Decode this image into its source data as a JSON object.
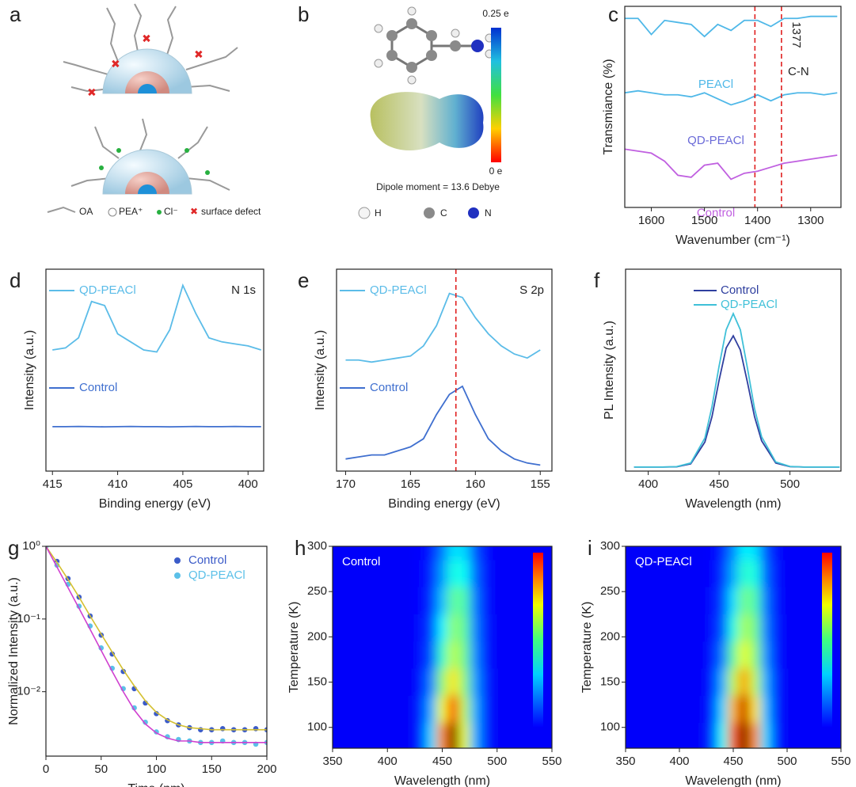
{
  "diagrams": [
    {
      "label": "a",
      "legend": [
        "OA",
        "PEA⁺",
        "Cl⁻",
        "surface defect"
      ]
    },
    {
      "label": "b",
      "scale_max": "0.25 e",
      "scale_min": "0 e",
      "caption": "Dipole moment = 13.6 Debye",
      "atoms": [
        "H",
        "C",
        "N"
      ]
    }
  ],
  "chart_data": [
    {
      "type": "line",
      "label": "c",
      "xlabel": "Wavenumber (cm⁻¹)",
      "ylabel": "Transmiance (%)",
      "legend": "inline",
      "x": [
        1650,
        1625,
        1600,
        1575,
        1550,
        1525,
        1500,
        1475,
        1450,
        1425,
        1400,
        1375,
        1350,
        1325,
        1300,
        1275,
        1250
      ],
      "series": [
        {
          "name": "PEACl",
          "color": "#4fb8e8",
          "values": [
            0.94,
            0.94,
            0.86,
            0.93,
            0.92,
            0.91,
            0.85,
            0.91,
            0.88,
            0.93,
            0.93,
            0.9,
            0.94,
            0.94,
            0.95,
            0.95,
            0.95
          ]
        },
        {
          "name": "QD-PEACl",
          "color": "#4fb8e8",
          "label_color": "#6a6ad8",
          "values": [
            0.57,
            0.58,
            0.57,
            0.56,
            0.56,
            0.55,
            0.57,
            0.54,
            0.51,
            0.53,
            0.56,
            0.53,
            0.56,
            0.57,
            0.57,
            0.56,
            0.57
          ]
        },
        {
          "name": "Control",
          "color": "#c060e0",
          "values": [
            0.29,
            0.28,
            0.27,
            0.23,
            0.16,
            0.15,
            0.21,
            0.22,
            0.14,
            0.17,
            0.18,
            0.2,
            0.22,
            0.23,
            0.24,
            0.25,
            0.26
          ]
        }
      ],
      "vlines": [
        1405,
        1355
      ],
      "vline_color": "#e02020",
      "annotations": [
        "1377",
        "C-N"
      ],
      "xlim": [
        1650,
        1243
      ],
      "ylim": [
        0,
        1
      ],
      "xticks": [
        1600,
        1500,
        1400,
        1300
      ]
    },
    {
      "type": "line",
      "label": "d",
      "xlabel": "Binding energy (eV)",
      "ylabel": "Intensity (a.u.)",
      "legend": "inline-line",
      "annotations": [
        "N 1s"
      ],
      "x": [
        415,
        414,
        413,
        412,
        411,
        410,
        409,
        408,
        407,
        406,
        405,
        404,
        403,
        402,
        401,
        400,
        399
      ],
      "series": [
        {
          "name": "QD-PEACl",
          "color": "#5bbce8",
          "values": [
            0.6,
            0.61,
            0.66,
            0.84,
            0.82,
            0.68,
            0.64,
            0.6,
            0.59,
            0.7,
            0.92,
            0.78,
            0.66,
            0.64,
            0.63,
            0.62,
            0.6
          ]
        },
        {
          "name": "Control",
          "color": "#3f6fcf",
          "values": [
            0.22,
            0.22,
            0.221,
            0.22,
            0.219,
            0.22,
            0.221,
            0.22,
            0.22,
            0.219,
            0.22,
            0.221,
            0.22,
            0.22,
            0.221,
            0.22,
            0.22
          ]
        }
      ],
      "xlim": [
        415.5,
        398.8
      ],
      "ylim": [
        0,
        1
      ],
      "xticks": [
        415,
        410,
        405,
        400
      ]
    },
    {
      "type": "line",
      "label": "e",
      "xlabel": "Binding energy (eV)",
      "ylabel": "Intensity (a.u.)",
      "legend": "inline-line",
      "annotations": [
        "S 2p"
      ],
      "x": [
        170,
        169,
        168,
        167,
        166,
        165,
        164,
        163,
        162,
        161,
        160,
        159,
        158,
        157,
        156,
        155
      ],
      "series": [
        {
          "name": "QD-PEACl",
          "color": "#5bbce8",
          "values": [
            0.55,
            0.55,
            0.54,
            0.55,
            0.56,
            0.57,
            0.62,
            0.72,
            0.88,
            0.86,
            0.76,
            0.68,
            0.62,
            0.58,
            0.56,
            0.6
          ]
        },
        {
          "name": "Control",
          "color": "#3f6fcf",
          "values": [
            0.06,
            0.07,
            0.08,
            0.08,
            0.1,
            0.12,
            0.16,
            0.28,
            0.38,
            0.42,
            0.28,
            0.16,
            0.1,
            0.06,
            0.04,
            0.03
          ]
        }
      ],
      "vlines": [
        161.5
      ],
      "vline_color": "#e02020",
      "xlim": [
        170.7,
        154.1
      ],
      "ylim": [
        0,
        1
      ],
      "xticks": [
        170,
        165,
        160,
        155
      ]
    },
    {
      "type": "line",
      "label": "f",
      "xlabel": "Wavelength (nm)",
      "ylabel": "PL Intensity (a.u.)",
      "legend": "upper right",
      "x": [
        390,
        400,
        410,
        420,
        430,
        440,
        445,
        450,
        455,
        460,
        465,
        470,
        475,
        480,
        490,
        500,
        510,
        520,
        530,
        535
      ],
      "series": [
        {
          "name": "Control",
          "color": "#2f3f9f",
          "values": [
            0.02,
            0.02,
            0.02,
            0.021,
            0.036,
            0.144,
            0.27,
            0.45,
            0.61,
            0.67,
            0.6,
            0.44,
            0.27,
            0.15,
            0.04,
            0.022,
            0.02,
            0.02,
            0.02,
            0.02
          ]
        },
        {
          "name": "QD-PEACl",
          "color": "#3fc0d8",
          "values": [
            0.02,
            0.02,
            0.02,
            0.022,
            0.04,
            0.164,
            0.32,
            0.52,
            0.7,
            0.78,
            0.7,
            0.51,
            0.31,
            0.17,
            0.045,
            0.023,
            0.02,
            0.02,
            0.02,
            0.02
          ]
        }
      ],
      "xlim": [
        384,
        536
      ],
      "ylim": [
        0,
        1
      ],
      "xticks": [
        400,
        450,
        500
      ]
    },
    {
      "type": "scatter",
      "label": "g",
      "xlabel": "Time (nm)",
      "ylabel": "Normalized Intensity (a.u.)",
      "legend": "upper right",
      "ylog": true,
      "x": [
        0,
        10,
        20,
        30,
        40,
        50,
        60,
        70,
        80,
        90,
        100,
        110,
        120,
        130,
        140,
        150,
        160,
        170,
        180,
        190,
        200
      ],
      "series": [
        {
          "name": "Control",
          "color": "#3b5bc8",
          "values": [
            1,
            0.62,
            0.36,
            0.2,
            0.11,
            0.06,
            0.033,
            0.019,
            0.011,
            0.007,
            0.005,
            0.004,
            0.0035,
            0.0032,
            0.003,
            0.003,
            0.0031,
            0.003,
            0.003,
            0.0031,
            0.003
          ],
          "fit_color": "#d4c030",
          "fit": [
            1,
            0.6,
            0.35,
            0.2,
            0.11,
            0.062,
            0.035,
            0.02,
            0.012,
            0.0075,
            0.0052,
            0.0041,
            0.0035,
            0.0032,
            0.0031,
            0.003,
            0.003,
            0.003,
            0.003,
            0.003,
            0.003
          ]
        },
        {
          "name": "QD-PEACl",
          "color": "#5bc0e8",
          "values": [
            1,
            0.55,
            0.3,
            0.15,
            0.08,
            0.04,
            0.021,
            0.011,
            0.006,
            0.0038,
            0.0028,
            0.0024,
            0.0022,
            0.0021,
            0.002,
            0.002,
            0.0021,
            0.002,
            0.002,
            0.0019,
            0.002
          ],
          "fit_color": "#d040d0",
          "fit": [
            1,
            0.52,
            0.27,
            0.14,
            0.072,
            0.037,
            0.019,
            0.01,
            0.0056,
            0.0036,
            0.0027,
            0.0023,
            0.0021,
            0.0021,
            0.002,
            0.002,
            0.002,
            0.002,
            0.002,
            0.002,
            0.002
          ]
        }
      ],
      "xlim": [
        0,
        200
      ],
      "ylim": [
        0.0013,
        1
      ],
      "xticks": [
        0,
        50,
        100,
        150,
        200
      ],
      "yticks": [
        {
          "value": 1,
          "label": "10⁰"
        },
        {
          "value": 0.1,
          "label": "10⁻¹"
        },
        {
          "value": 0.01,
          "label": "10⁻²"
        }
      ]
    },
    {
      "type": "heatmap",
      "label": "h",
      "title": "Control",
      "xlabel": "Wavelength (nm)",
      "ylabel": "Temperature (K)",
      "x": [
        420,
        430,
        440,
        450,
        460,
        470,
        480,
        490,
        500
      ],
      "y": [
        90,
        120,
        150,
        180,
        210,
        240,
        270,
        300
      ],
      "z": [
        [
          0,
          0.05,
          0.25,
          0.7,
          1.0,
          0.55,
          0.2,
          0.05,
          0
        ],
        [
          0,
          0.05,
          0.2,
          0.55,
          0.8,
          0.5,
          0.2,
          0.05,
          0
        ],
        [
          0,
          0.03,
          0.15,
          0.45,
          0.6,
          0.45,
          0.18,
          0.05,
          0
        ],
        [
          0,
          0.02,
          0.1,
          0.35,
          0.5,
          0.42,
          0.16,
          0.04,
          0
        ],
        [
          0,
          0.02,
          0.08,
          0.28,
          0.45,
          0.4,
          0.15,
          0.04,
          0
        ],
        [
          0,
          0.01,
          0.06,
          0.22,
          0.4,
          0.38,
          0.14,
          0.03,
          0
        ],
        [
          0,
          0.01,
          0.05,
          0.18,
          0.32,
          0.3,
          0.12,
          0.03,
          0
        ],
        [
          0,
          0.01,
          0.04,
          0.14,
          0.26,
          0.25,
          0.1,
          0.02,
          0
        ]
      ],
      "colormap": "jet",
      "xlim": [
        350,
        550
      ],
      "ylim": [
        77,
        300
      ],
      "xticks": [
        350,
        400,
        450,
        500,
        550
      ],
      "yticks": [
        100,
        150,
        200,
        250,
        300
      ]
    },
    {
      "type": "heatmap",
      "label": "i",
      "title": "QD-PEACl",
      "xlabel": "Wavelength (nm)",
      "ylabel": "Temperature (K)",
      "x": [
        420,
        430,
        440,
        450,
        460,
        470,
        480,
        490,
        500
      ],
      "y": [
        90,
        120,
        150,
        180,
        210,
        240,
        270,
        300
      ],
      "z": [
        [
          0,
          0.06,
          0.3,
          0.75,
          1.0,
          0.7,
          0.25,
          0.05,
          0
        ],
        [
          0,
          0.05,
          0.25,
          0.65,
          0.92,
          0.6,
          0.22,
          0.05,
          0
        ],
        [
          0,
          0.04,
          0.2,
          0.5,
          0.68,
          0.5,
          0.2,
          0.05,
          0
        ],
        [
          0,
          0.03,
          0.14,
          0.4,
          0.55,
          0.45,
          0.17,
          0.04,
          0
        ],
        [
          0,
          0.02,
          0.1,
          0.32,
          0.48,
          0.42,
          0.15,
          0.04,
          0
        ],
        [
          0,
          0.02,
          0.08,
          0.26,
          0.42,
          0.38,
          0.14,
          0.03,
          0
        ],
        [
          0,
          0.01,
          0.06,
          0.2,
          0.34,
          0.32,
          0.12,
          0.03,
          0
        ],
        [
          0,
          0.01,
          0.05,
          0.16,
          0.28,
          0.26,
          0.1,
          0.02,
          0
        ]
      ],
      "colormap": "jet",
      "xlim": [
        350,
        550
      ],
      "ylim": [
        77,
        300
      ],
      "xticks": [
        350,
        400,
        450,
        500,
        550
      ],
      "yticks": [
        100,
        150,
        200,
        250,
        300
      ]
    }
  ]
}
